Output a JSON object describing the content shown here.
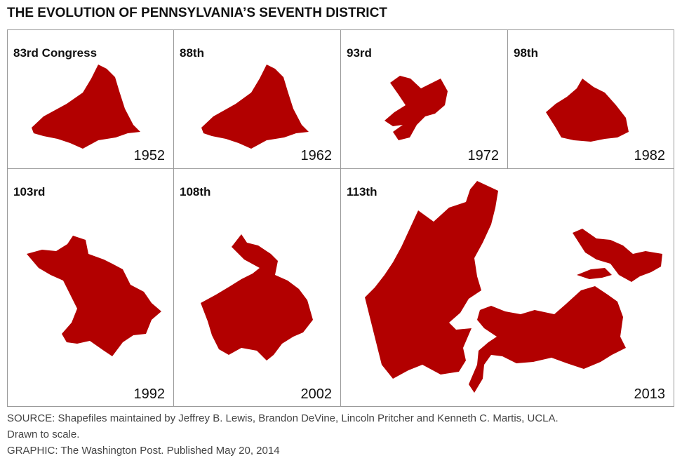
{
  "title": "THE EVOLUTION OF PENNSYLVANIA’S SEVENTH DISTRICT",
  "panels": [
    {
      "congress": "83rd Congress",
      "year": "1952"
    },
    {
      "congress": "88th",
      "year": "1962"
    },
    {
      "congress": "93rd",
      "year": "1972"
    },
    {
      "congress": "98th",
      "year": "1982"
    },
    {
      "congress": "103rd",
      "year": "1992"
    },
    {
      "congress": "108th",
      "year": "2002"
    },
    {
      "congress": "113th",
      "year": "2013"
    }
  ],
  "footer": {
    "source": "SOURCE: Shapefiles maintained by Jeffrey B. Lewis, Brandon DeVine, Lincoln Pritcher and Kenneth C. Martis, UCLA.",
    "note": "Drawn to scale.",
    "credit": "GRAPHIC: The Washington Post. Published May 20, 2014"
  }
}
